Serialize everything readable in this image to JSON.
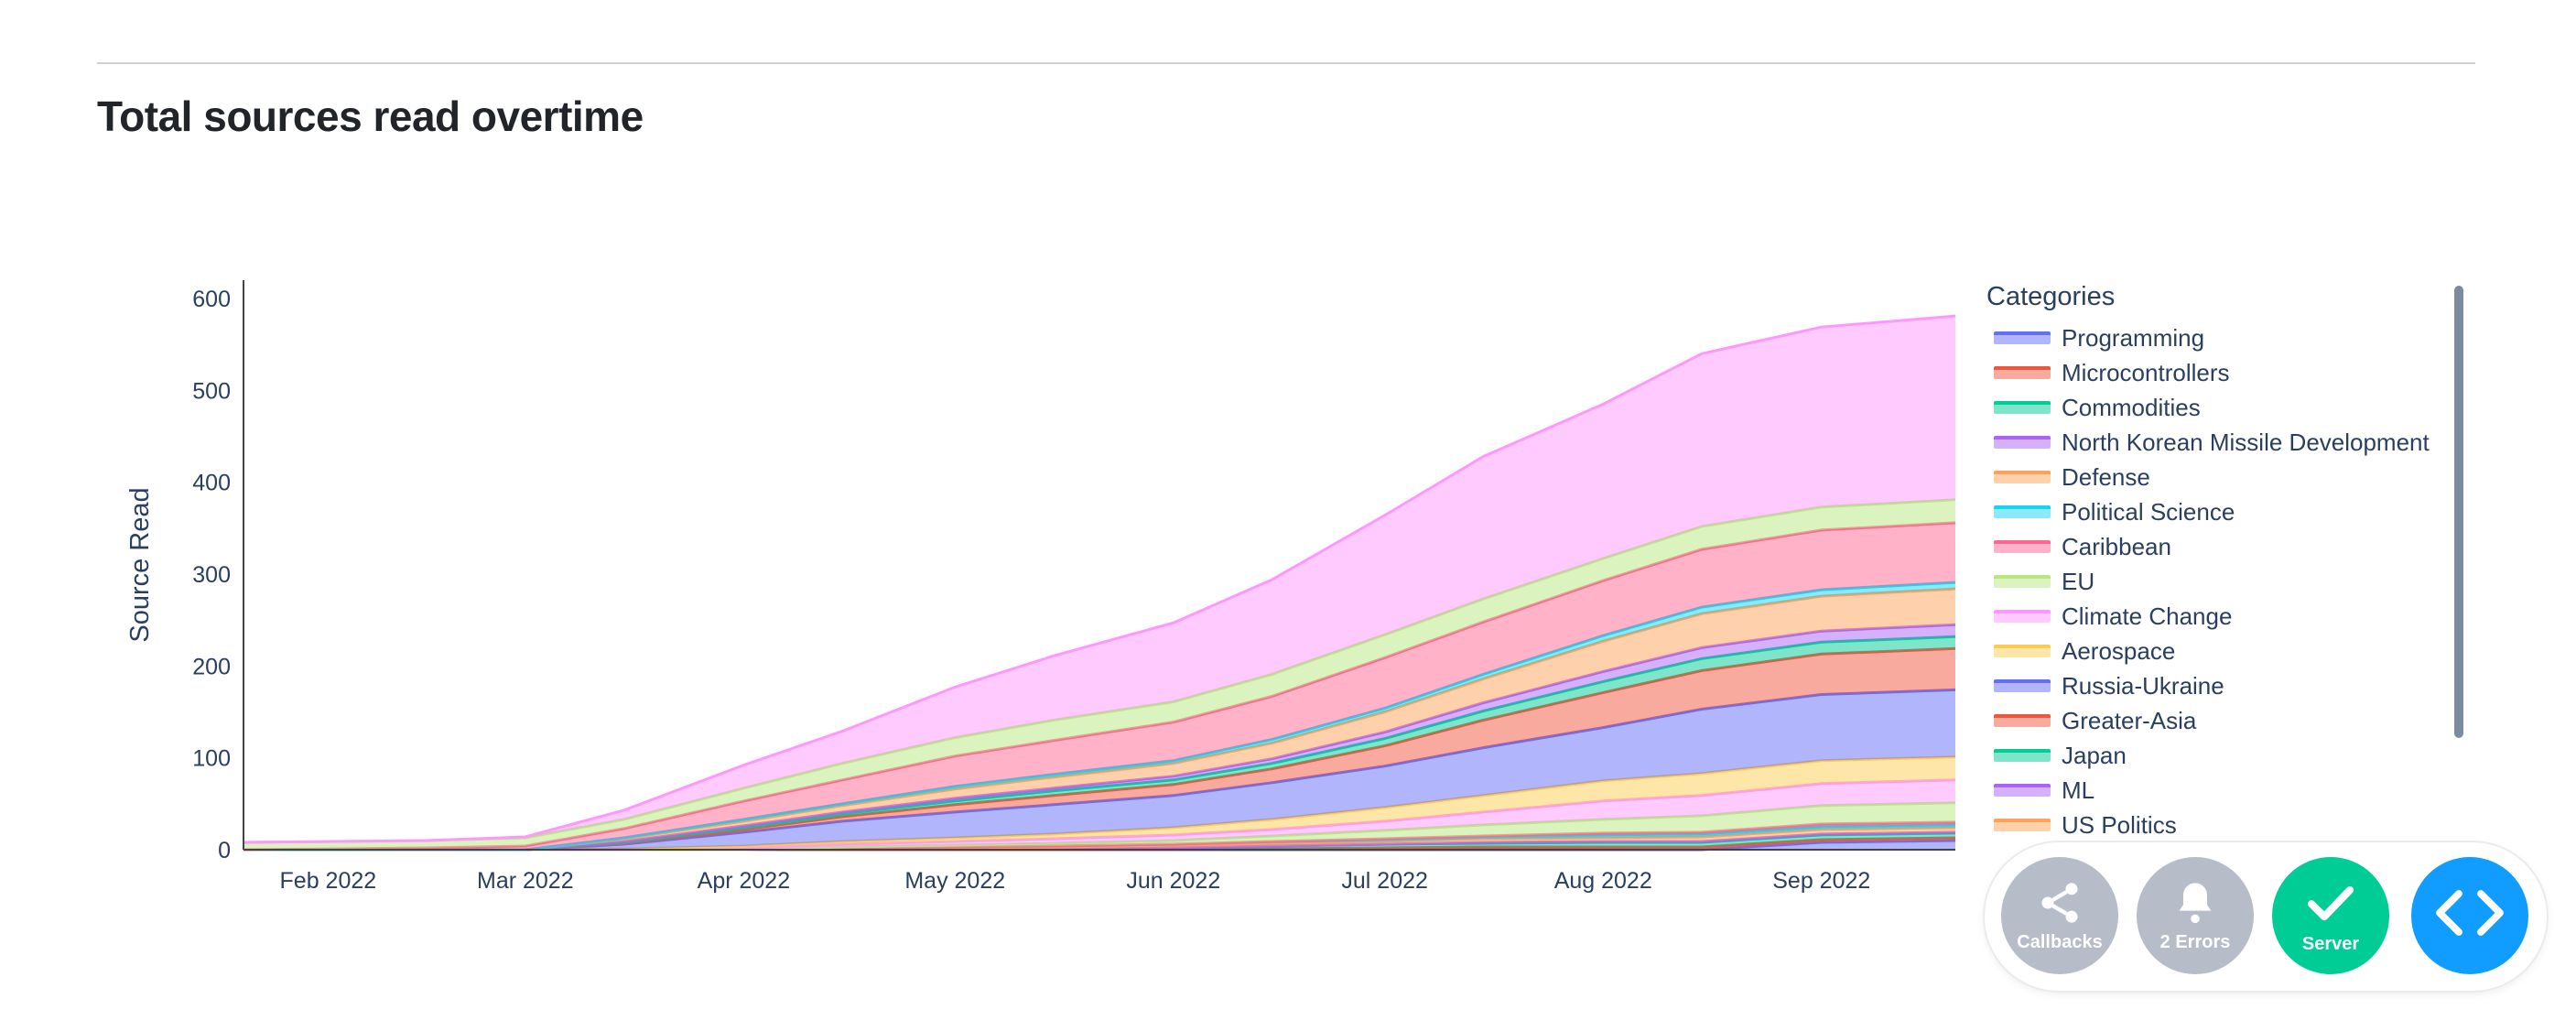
{
  "header": {
    "title": "Total sources read overtime"
  },
  "devtools": {
    "callbacks_label": "Callbacks",
    "errors_label": "2 Errors",
    "server_label": "Server",
    "colors": {
      "gray": "#b6bcc8",
      "server": "#00cc96",
      "code": "#119dff"
    }
  },
  "chart_data": {
    "type": "area",
    "ylabel": "Source Read",
    "xlabel": "",
    "ylim": [
      0,
      620
    ],
    "yticks": [
      0,
      100,
      200,
      300,
      400,
      500,
      600
    ],
    "xticks": [
      "Feb 2022",
      "Mar 2022",
      "Apr 2022",
      "May 2022",
      "Jun 2022",
      "Jul 2022",
      "Aug 2022",
      "Sep 2022"
    ],
    "x": [
      "2022-01-20",
      "2022-02-15",
      "2022-03-01",
      "2022-03-15",
      "2022-04-01",
      "2022-04-15",
      "2022-05-01",
      "2022-05-15",
      "2022-06-01",
      "2022-06-15",
      "2022-07-01",
      "2022-07-15",
      "2022-08-01",
      "2022-08-15",
      "2022-09-01",
      "2022-09-20"
    ],
    "legend_title": "Categories",
    "legend_position": "right",
    "series": [
      {
        "name": "Programming",
        "color": "#636efa",
        "values": [
          0,
          0,
          0,
          0,
          0,
          0,
          0,
          0,
          0,
          0,
          0,
          0,
          0,
          0,
          8,
          10
        ]
      },
      {
        "name": "Microcontrollers",
        "color": "#ef553b",
        "values": [
          0,
          0,
          0,
          0,
          0,
          0,
          0,
          0,
          0,
          1,
          2,
          3,
          3,
          3,
          3,
          3
        ]
      },
      {
        "name": "Commodities",
        "color": "#00cc96",
        "values": [
          0,
          0,
          0,
          0,
          0,
          1,
          1,
          1,
          2,
          3,
          4,
          4,
          5,
          5,
          5,
          5
        ]
      },
      {
        "name": "North Korean Missile Development",
        "color": "#ab63fa",
        "values": [
          0,
          0,
          0,
          0,
          0,
          0,
          0,
          0,
          0,
          0,
          0,
          1,
          1,
          1,
          1,
          1
        ]
      },
      {
        "name": "Defense",
        "color": "#ffa15a",
        "values": [
          0,
          0,
          0,
          0,
          0,
          0,
          1,
          2,
          3,
          3,
          3,
          4,
          4,
          5,
          5,
          5
        ]
      },
      {
        "name": "Political Science",
        "color": "#19d3f3",
        "values": [
          0,
          0,
          0,
          0,
          0,
          1,
          1,
          1,
          1,
          2,
          2,
          2,
          3,
          3,
          3,
          3
        ]
      },
      {
        "name": "Caribbean",
        "color": "#ff6692",
        "values": [
          0,
          0,
          0,
          0,
          0,
          0,
          0,
          0,
          0,
          0,
          1,
          1,
          2,
          2,
          3,
          3
        ]
      },
      {
        "name": "EU",
        "color": "#b6e880",
        "values": [
          0,
          0,
          0,
          0,
          0,
          1,
          2,
          3,
          4,
          6,
          9,
          12,
          15,
          18,
          20,
          21
        ]
      },
      {
        "name": "Climate Change",
        "color": "#ff97ff",
        "values": [
          0,
          0,
          0,
          0,
          2,
          3,
          4,
          5,
          6,
          7,
          10,
          14,
          20,
          22,
          24,
          25
        ]
      },
      {
        "name": "Aerospace",
        "color": "#fecb52",
        "values": [
          0,
          0,
          0,
          1,
          2,
          3,
          4,
          5,
          8,
          11,
          15,
          18,
          22,
          24,
          25,
          25
        ]
      },
      {
        "name": "Russia-Ukraine",
        "color": "#636efa",
        "values": [
          0,
          0,
          0,
          5,
          15,
          22,
          28,
          32,
          35,
          40,
          45,
          52,
          58,
          70,
          72,
          73
        ]
      },
      {
        "name": "Greater-Asia",
        "color": "#ef553b",
        "values": [
          0,
          0,
          0,
          1,
          3,
          5,
          8,
          10,
          12,
          15,
          22,
          30,
          38,
          42,
          44,
          45
        ]
      },
      {
        "name": "Japan",
        "color": "#00cc96",
        "values": [
          0,
          0,
          0,
          1,
          2,
          3,
          4,
          5,
          5,
          6,
          8,
          10,
          12,
          13,
          13,
          13
        ]
      },
      {
        "name": "ML",
        "color": "#ab63fa",
        "values": [
          0,
          0,
          0,
          1,
          2,
          2,
          3,
          3,
          4,
          5,
          7,
          9,
          11,
          12,
          12,
          13
        ]
      },
      {
        "name": "US Politics",
        "color": "#ffa15a",
        "values": [
          0,
          0,
          0,
          3,
          5,
          7,
          10,
          12,
          14,
          17,
          22,
          26,
          33,
          37,
          38,
          39
        ]
      },
      {
        "name": "",
        "color": "#19d3f3",
        "values": [
          0,
          0,
          0,
          1,
          2,
          2,
          3,
          3,
          3,
          4,
          4,
          5,
          6,
          7,
          7,
          7
        ]
      },
      {
        "name": "",
        "color": "#ff6692",
        "values": [
          0,
          2,
          4,
          10,
          20,
          26,
          33,
          37,
          42,
          47,
          55,
          57,
          60,
          63,
          65,
          65
        ]
      },
      {
        "name": "",
        "color": "#b6e880",
        "values": [
          8,
          8,
          9,
          10,
          14,
          18,
          20,
          22,
          22,
          24,
          25,
          25,
          24,
          25,
          25,
          25
        ]
      },
      {
        "name": "",
        "color": "#ff97ff",
        "values": [
          0,
          0,
          1,
          10,
          25,
          35,
          55,
          70,
          86,
          103,
          130,
          155,
          168,
          188,
          196,
          200
        ]
      }
    ]
  }
}
